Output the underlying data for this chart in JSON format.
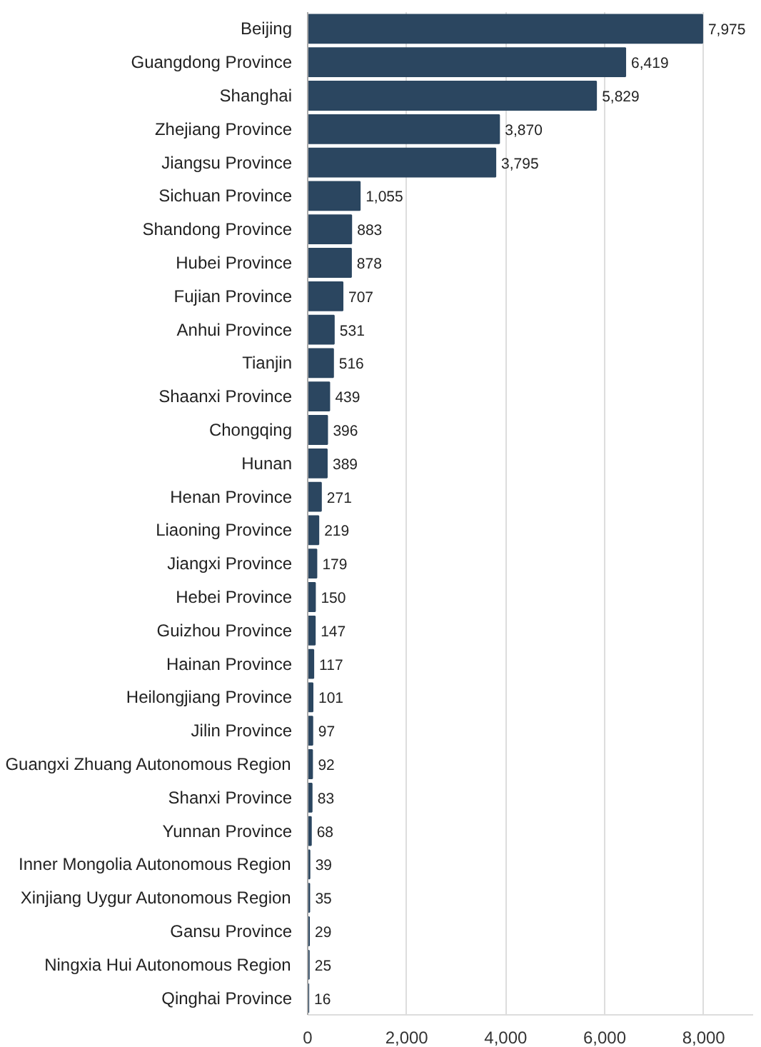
{
  "chart_data": {
    "type": "bar",
    "orientation": "horizontal",
    "categories": [
      "Beijing",
      "Guangdong Province",
      "Shanghai",
      "Zhejiang Province",
      "Jiangsu Province",
      "Sichuan Province",
      "Shandong Province",
      "Hubei Province",
      "Fujian Province",
      "Anhui Province",
      "Tianjin",
      "Shaanxi Province",
      "Chongqing",
      "Hunan",
      "Henan Province",
      "Liaoning Province",
      "Jiangxi Province",
      "Hebei Province",
      "Guizhou Province",
      "Hainan Province",
      "Heilongjiang Province",
      "Jilin Province",
      "Guangxi Zhuang Autonomous Region",
      "Shanxi Province",
      "Yunnan Province",
      "Inner Mongolia Autonomous Region",
      "Xinjiang Uygur Autonomous Region",
      "Gansu Province",
      "Ningxia Hui Autonomous Region",
      "Qinghai Province"
    ],
    "values": [
      7975,
      6419,
      5829,
      3870,
      3795,
      1055,
      883,
      878,
      707,
      531,
      516,
      439,
      396,
      389,
      271,
      219,
      179,
      150,
      147,
      117,
      101,
      97,
      92,
      83,
      68,
      39,
      35,
      29,
      25,
      16
    ],
    "value_labels": [
      "7,975",
      "6,419",
      "5,829",
      "3,870",
      "3,795",
      "1,055",
      "883",
      "878",
      "707",
      "531",
      "516",
      "439",
      "396",
      "389",
      "271",
      "219",
      "179",
      "150",
      "147",
      "117",
      "101",
      "97",
      "92",
      "83",
      "68",
      "39",
      "35",
      "29",
      "25",
      "16"
    ],
    "color": "#2b4660",
    "xlim": [
      0,
      9000
    ],
    "xticks": [
      {
        "value": 0,
        "label": "0"
      },
      {
        "value": 2000,
        "label": "2,000"
      },
      {
        "value": 4000,
        "label": "4,000"
      },
      {
        "value": 6000,
        "label": "6,000"
      },
      {
        "value": 8000,
        "label": "8,000"
      }
    ],
    "grid": "x"
  }
}
